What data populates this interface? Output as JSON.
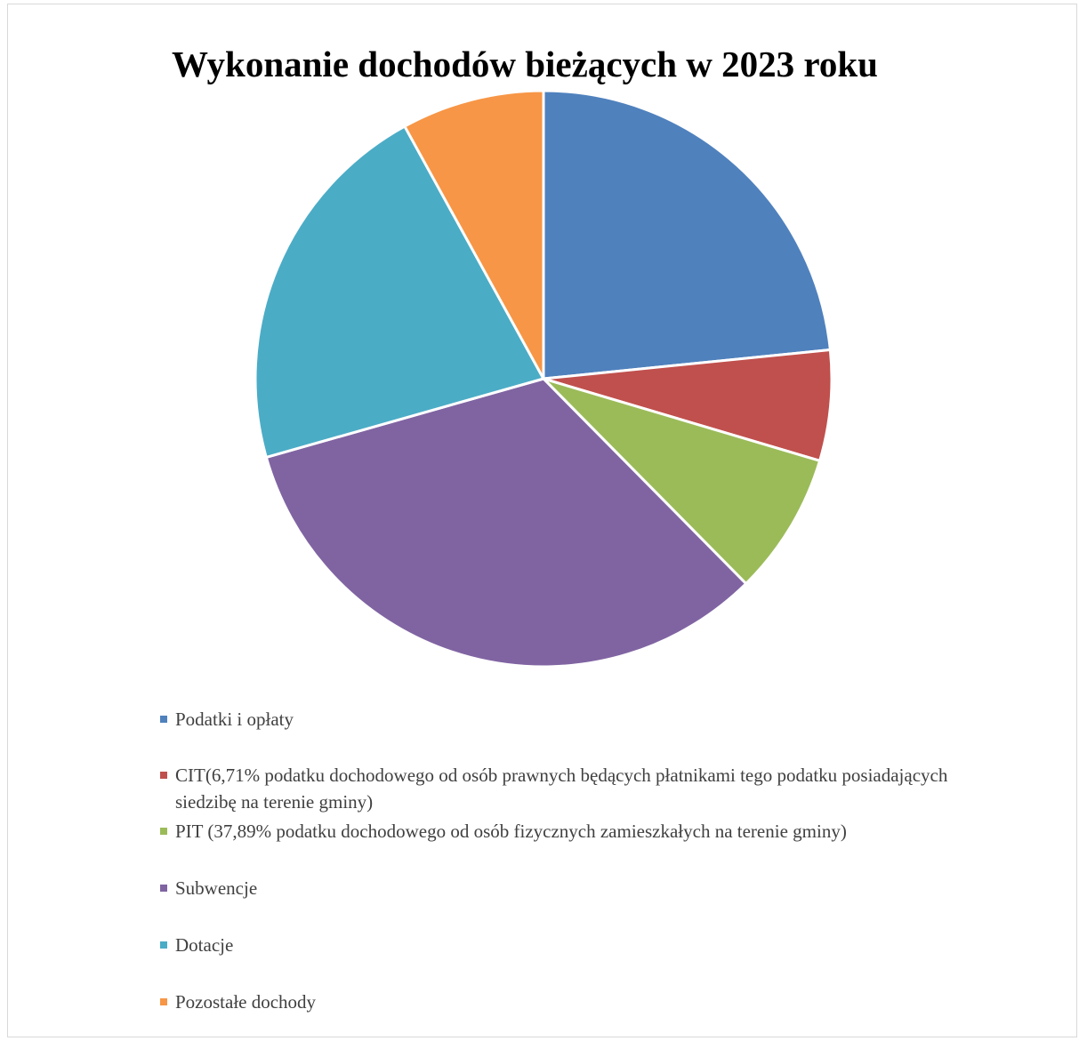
{
  "chart_data": {
    "type": "pie",
    "title": "Wykonanie dochodów bieżących w 2023 roku",
    "slices": [
      {
        "name": "Podatki i opłaty",
        "value": 23.4,
        "color": "#4F81BD"
      },
      {
        "name": "CIT(6,71% podatku dochodowego od osób prawnych będących płatnikami tego podatku posiadających siedzibę na terenie gminy)",
        "value": 6.2,
        "color": "#C0504D"
      },
      {
        "name": "PIT (37,89% podatku dochodowego od osób fizycznych zamieszkałych na terenie gminy)",
        "value": 8.0,
        "color": "#9BBB59"
      },
      {
        "name": "Subwencje",
        "value": 33.0,
        "color": "#8064A2"
      },
      {
        "name": "Dotacje",
        "value": 21.4,
        "color": "#4BACC6"
      },
      {
        "name": "Pozostałe dochody",
        "value": 8.0,
        "color": "#F79646"
      }
    ],
    "start_angle": "12 o'clock",
    "direction": "clockwise",
    "legend_position": "bottom"
  }
}
